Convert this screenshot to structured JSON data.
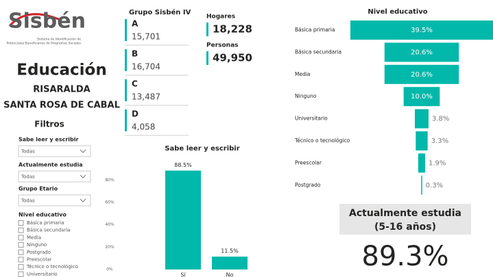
{
  "logo": {
    "name": "Sisbén",
    "tagline_1": "Sistema de Identificación de",
    "tagline_2": "Potenciales Beneficiarios de Programas Sociales"
  },
  "header": {
    "title": "Educación",
    "department": "RISARALDA",
    "municipality": "SANTA ROSA DE CABAL"
  },
  "filters": {
    "title": "Filtros",
    "dropdowns": [
      {
        "label": "Sabe leer y escribir",
        "value": "Todas"
      },
      {
        "label": "Actualmente estudia",
        "value": "Todas"
      },
      {
        "label": "Grupo Etario",
        "value": "Todas"
      }
    ],
    "checklist": {
      "label": "Nivel educativo",
      "items": [
        "Básica primaria",
        "Básica secundaria",
        "Media",
        "Ninguno",
        "Postgrado",
        "Preescolar",
        "Técnico o tecnológico",
        "Universitario"
      ]
    }
  },
  "groups": {
    "title": "Grupo Sisbén IV",
    "cards": [
      {
        "name": "A",
        "value": "15,701"
      },
      {
        "name": "B",
        "value": "16,704"
      },
      {
        "name": "C",
        "value": "13,487"
      },
      {
        "name": "D",
        "value": "4,058"
      }
    ]
  },
  "totals": [
    {
      "label": "Hogares",
      "value": "18,228"
    },
    {
      "label": "Personas",
      "value": "49,950"
    }
  ],
  "kpi": {
    "title_1": "Actualmente estudia",
    "title_2": "(5-16 años)",
    "value": "89.3%"
  },
  "chart_data": [
    {
      "type": "bar",
      "title": "Sabe leer y escribir",
      "categories": [
        "Sí",
        "No"
      ],
      "values": [
        88.5,
        11.5
      ],
      "value_labels": [
        "88.5%",
        "11.5%"
      ],
      "color": "#01b8aa",
      "ylim": [
        0,
        90
      ],
      "yticks": [
        {
          "value": 0,
          "label": "0%"
        },
        {
          "value": 20,
          "label": "20%"
        },
        {
          "value": 40,
          "label": "40%"
        },
        {
          "value": 60,
          "label": "60%"
        },
        {
          "value": 80,
          "label": "80%"
        }
      ]
    },
    {
      "type": "funnel",
      "title": "Nivel educativo",
      "categories": [
        "Básica primaria",
        "Básica secundaria",
        "Media",
        "Ninguno",
        "Universitario",
        "Técnico o tecnológico",
        "Preescolar",
        "Postgrado"
      ],
      "values": [
        39.5,
        20.6,
        20.6,
        10.0,
        3.8,
        3.3,
        1.9,
        0.3
      ],
      "value_labels": [
        "39.5%",
        "20.6%",
        "20.6%",
        "10.0%",
        "3.8%",
        "3.3%",
        "1.9%",
        "0.3%"
      ],
      "color": "#01b8aa"
    }
  ]
}
